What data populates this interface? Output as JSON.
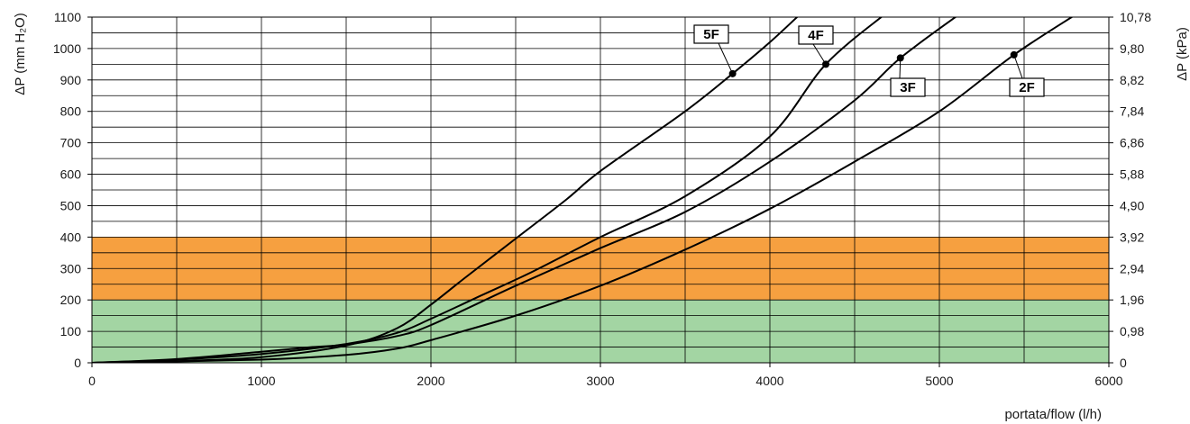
{
  "chart_data": {
    "type": "line",
    "x_label": "portata/flow (l/h)",
    "y_label_left": "ΔP (mm H₂O)",
    "y_label_right": "ΔP (kPa)",
    "xlim": [
      0,
      6000
    ],
    "ylim": [
      0,
      1100
    ],
    "x_ticks": [
      "0",
      "1000",
      "2000",
      "3000",
      "4000",
      "5000",
      "6000"
    ],
    "y_ticks_left": [
      "0",
      "100",
      "200",
      "300",
      "400",
      "500",
      "600",
      "700",
      "800",
      "900",
      "1000",
      "1100"
    ],
    "y_ticks_right": [
      "0",
      "0,98",
      "1,96",
      "2,94",
      "3,92",
      "4,90",
      "5,88",
      "6,86",
      "7,84",
      "8,82",
      "9,80",
      "10,78"
    ],
    "grid": true,
    "bands": [
      {
        "from": 0,
        "to": 200,
        "color": "#a3d5a3"
      },
      {
        "from": 200,
        "to": 400,
        "color": "#f6a040"
      }
    ],
    "series": [
      {
        "name": "5F",
        "points": [
          [
            0,
            0
          ],
          [
            500,
            5
          ],
          [
            1000,
            18
          ],
          [
            1500,
            55
          ],
          [
            1800,
            110
          ],
          [
            2000,
            185
          ],
          [
            2200,
            270
          ],
          [
            2500,
            395
          ],
          [
            2800,
            520
          ],
          [
            3000,
            610
          ],
          [
            3500,
            800
          ],
          [
            3780,
            920
          ],
          [
            4000,
            1020
          ],
          [
            4180,
            1110
          ]
        ],
        "marker": [
          3780,
          920
        ]
      },
      {
        "name": "4F",
        "points": [
          [
            0,
            0
          ],
          [
            500,
            10
          ],
          [
            1000,
            28
          ],
          [
            1500,
            60
          ],
          [
            1800,
            95
          ],
          [
            2000,
            140
          ],
          [
            2300,
            215
          ],
          [
            2600,
            290
          ],
          [
            3000,
            400
          ],
          [
            3500,
            530
          ],
          [
            4000,
            720
          ],
          [
            4330,
            950
          ],
          [
            4680,
            1110
          ]
        ],
        "marker": [
          4330,
          950
        ]
      },
      {
        "name": "3F",
        "points": [
          [
            0,
            0
          ],
          [
            500,
            12
          ],
          [
            1000,
            35
          ],
          [
            1300,
            50
          ],
          [
            1500,
            58
          ],
          [
            1800,
            85
          ],
          [
            2000,
            120
          ],
          [
            2500,
            245
          ],
          [
            3000,
            365
          ],
          [
            3500,
            480
          ],
          [
            4000,
            640
          ],
          [
            4500,
            835
          ],
          [
            4770,
            970
          ],
          [
            5120,
            1110
          ]
        ],
        "marker": [
          4770,
          970
        ]
      },
      {
        "name": "2F",
        "points": [
          [
            0,
            0
          ],
          [
            1000,
            10
          ],
          [
            1500,
            25
          ],
          [
            1800,
            45
          ],
          [
            2000,
            72
          ],
          [
            2500,
            150
          ],
          [
            3000,
            245
          ],
          [
            3500,
            360
          ],
          [
            4000,
            490
          ],
          [
            4500,
            640
          ],
          [
            5000,
            800
          ],
          [
            5440,
            980
          ],
          [
            5810,
            1110
          ]
        ],
        "marker": [
          5440,
          980
        ]
      }
    ]
  }
}
